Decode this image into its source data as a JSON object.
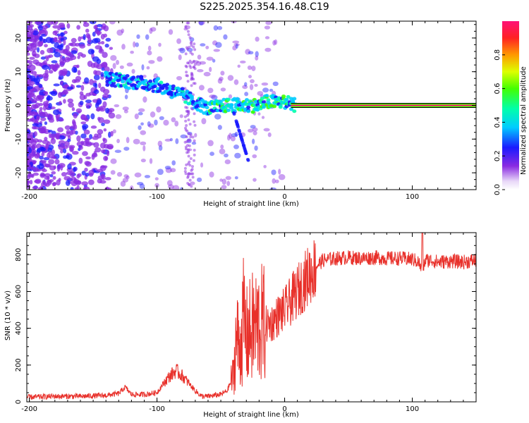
{
  "title": "S225.2025.354.16.48.C19",
  "chart_data": [
    {
      "type": "heatmap",
      "title": "S225.2025.354.16.48.C19",
      "xlabel": "Height of straight line (km)",
      "ylabel": "Frequency (Hz)",
      "xlim": [
        -202,
        150
      ],
      "ylim": [
        -25,
        25
      ],
      "xticks": [
        "-200",
        "-100",
        "0",
        "100"
      ],
      "yticks": [
        "-20",
        "-10",
        "0",
        "10",
        "20"
      ],
      "colorbar": {
        "label": "Normalized spectral amplitude",
        "range": [
          0.0,
          1.0
        ],
        "ticks": [
          "0.0",
          "0.2",
          "0.4",
          "0.6",
          "0.8"
        ]
      },
      "ridge": [
        {
          "x": -140,
          "y": 8
        },
        {
          "x": -100,
          "y": 6
        },
        {
          "x": -80,
          "y": 3
        },
        {
          "x": -60,
          "y": -1
        },
        {
          "x": -45,
          "y": 0
        },
        {
          "x": -35,
          "y": 0
        },
        {
          "x": -20,
          "y": 0
        },
        {
          "x": -15,
          "y": 1
        },
        {
          "x": 0,
          "y": 1
        },
        {
          "x": 10,
          "y": 0
        },
        {
          "x": 150,
          "y": 0
        }
      ]
    },
    {
      "type": "line",
      "xlabel": "Height of straight line (km)",
      "ylabel": "SNR (10 * v/v)",
      "xlim": [
        -202,
        150
      ],
      "ylim": [
        0,
        920
      ],
      "xticks": [
        "-200",
        "-100",
        "0",
        "100"
      ],
      "yticks": [
        "0",
        "200",
        "400",
        "600",
        "800"
      ],
      "series": [
        {
          "name": "SNR",
          "color": "#e8302a",
          "x": [
            -202,
            -180,
            -160,
            -140,
            -130,
            -125,
            -120,
            -110,
            -100,
            -95,
            -90,
            -85,
            -80,
            -75,
            -70,
            -65,
            -60,
            -50,
            -45,
            -40,
            -38,
            -35,
            -32,
            -30,
            -25,
            -20,
            -15,
            -10,
            -5,
            0,
            5,
            10,
            15,
            20,
            25,
            30,
            40,
            50,
            60,
            70,
            80,
            90,
            100,
            105,
            108,
            110,
            115,
            120,
            130,
            140,
            150
          ],
          "values": [
            25,
            30,
            30,
            35,
            45,
            80,
            40,
            40,
            50,
            100,
            140,
            170,
            140,
            100,
            60,
            30,
            30,
            40,
            60,
            150,
            350,
            300,
            450,
            350,
            400,
            420,
            420,
            430,
            470,
            500,
            550,
            600,
            650,
            700,
            740,
            770,
            780,
            785,
            780,
            785,
            780,
            780,
            775,
            760,
            700,
            770,
            770,
            760,
            765,
            760,
            770
          ]
        }
      ]
    }
  ]
}
